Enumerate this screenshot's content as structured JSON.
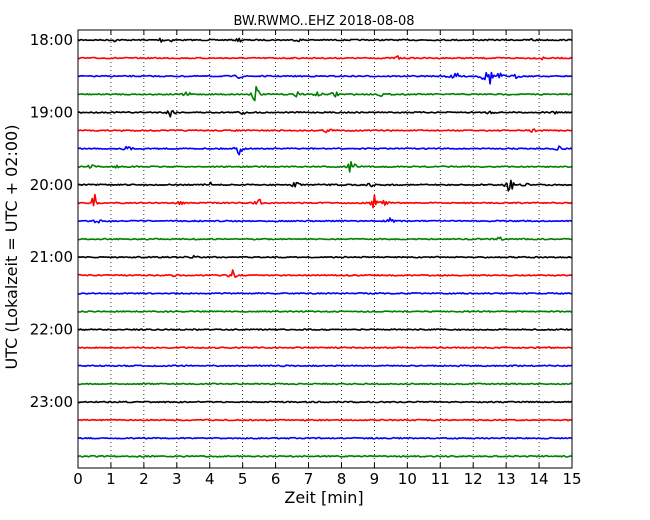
{
  "chart_data": {
    "type": "line",
    "title": "BW.RWMO..EHZ 2018-08-08",
    "xlabel": "Zeit  [min]",
    "ylabel": "UTC (Lokalzeit = UTC + 02:00)",
    "xlim": [
      0,
      15
    ],
    "x_ticks": [
      0,
      1,
      2,
      3,
      4,
      5,
      6,
      7,
      8,
      9,
      10,
      11,
      12,
      13,
      14,
      15
    ],
    "x_tick_labels": [
      "0",
      "1",
      "2",
      "3",
      "4",
      "5",
      "6",
      "7",
      "8",
      "9",
      "10",
      "11",
      "12",
      "13",
      "14",
      "15"
    ],
    "y_tick_labels": [
      "18:00",
      "19:00",
      "20:00",
      "21:00",
      "22:00",
      "23:00"
    ],
    "y_tick_rows": [
      0,
      4,
      8,
      12,
      16,
      20
    ],
    "grid": "vertical dotted",
    "trace_colors": [
      "#000000",
      "#ff0000",
      "#0000ff",
      "#008000"
    ],
    "traces": [
      {
        "start": "18:00",
        "events": [
          [
            1.1,
            0.1
          ],
          [
            2.5,
            0.2
          ],
          [
            2.8,
            0.15
          ],
          [
            4.9,
            0.15
          ],
          [
            6.7,
            0.1
          ],
          [
            13.8,
            0.15
          ]
        ]
      },
      {
        "start": "18:15",
        "events": [
          [
            9.7,
            0.2
          ],
          [
            14.1,
            0.1
          ]
        ]
      },
      {
        "start": "18:30",
        "events": [
          [
            4.9,
            0.15
          ],
          [
            11.3,
            0.2
          ],
          [
            11.5,
            0.25
          ],
          [
            12.3,
            0.4
          ],
          [
            12.5,
            0.7
          ],
          [
            12.8,
            0.3
          ],
          [
            13.3,
            0.15
          ]
        ]
      },
      {
        "start": "18:45",
        "events": [
          [
            3.3,
            0.25
          ],
          [
            5.4,
            0.9
          ],
          [
            6.7,
            0.35
          ],
          [
            7.8,
            0.3
          ],
          [
            7.3,
            0.2
          ],
          [
            9.2,
            0.15
          ]
        ]
      },
      {
        "start": "19:00",
        "events": [
          [
            2.8,
            0.45
          ],
          [
            5.0,
            0.2
          ],
          [
            12.5,
            0.15
          ],
          [
            14.5,
            0.1
          ]
        ]
      },
      {
        "start": "19:15",
        "events": [
          [
            1.4,
            0.1
          ],
          [
            7.6,
            0.25
          ],
          [
            13.8,
            0.15
          ]
        ]
      },
      {
        "start": "19:30",
        "events": [
          [
            1.5,
            0.2
          ],
          [
            4.9,
            0.55
          ],
          [
            14.6,
            0.15
          ]
        ]
      },
      {
        "start": "19:45",
        "events": [
          [
            0.4,
            0.15
          ],
          [
            1.2,
            0.1
          ],
          [
            8.3,
            0.7
          ]
        ]
      },
      {
        "start": "20:00",
        "events": [
          [
            4.0,
            0.2
          ],
          [
            6.6,
            0.3
          ],
          [
            8.9,
            0.15
          ],
          [
            13.1,
            0.85
          ],
          [
            13.6,
            0.15
          ]
        ]
      },
      {
        "start": "20:15",
        "events": [
          [
            0.5,
            0.7
          ],
          [
            3.1,
            0.2
          ],
          [
            5.5,
            0.35
          ],
          [
            9.0,
            0.55
          ],
          [
            9.3,
            0.2
          ]
        ]
      },
      {
        "start": "20:30",
        "events": [
          [
            0.6,
            0.25
          ],
          [
            9.5,
            0.3
          ]
        ]
      },
      {
        "start": "20:45",
        "events": [
          [
            12.8,
            0.15
          ]
        ]
      },
      {
        "start": "21:00",
        "events": [
          [
            3.5,
            0.08
          ]
        ]
      },
      {
        "start": "21:15",
        "events": [
          [
            2.9,
            0.1
          ],
          [
            4.7,
            0.4
          ],
          [
            5.4,
            0.1
          ]
        ]
      },
      {
        "start": "21:30",
        "events": []
      },
      {
        "start": "21:45",
        "events": []
      },
      {
        "start": "22:00",
        "events": []
      },
      {
        "start": "22:15",
        "events": []
      },
      {
        "start": "22:30",
        "events": []
      },
      {
        "start": "22:45",
        "events": []
      },
      {
        "start": "23:00",
        "events": []
      },
      {
        "start": "23:15",
        "events": []
      },
      {
        "start": "23:30",
        "events": []
      },
      {
        "start": "23:45",
        "events": []
      }
    ]
  }
}
